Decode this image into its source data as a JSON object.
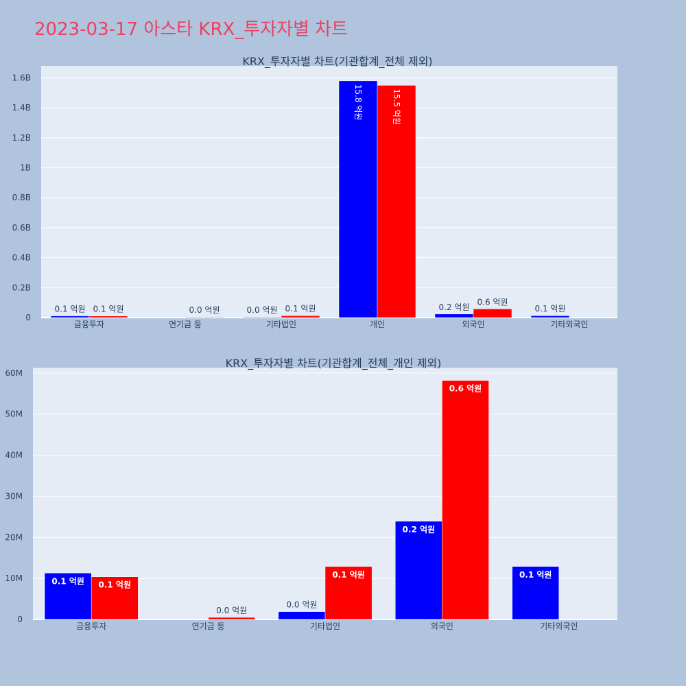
{
  "page": {
    "title": "2023-03-17 아스타 KRX_투자자별 차트",
    "title_color": "#ee4060",
    "background": "#b0c4de",
    "plot_background": "#e5ecf6"
  },
  "chart_data": [
    {
      "type": "bar",
      "title": "KRX_투자자별 차트(기관합계_전체 제외)",
      "categories": [
        "금융투자",
        "연기금 등",
        "기타법인",
        "개인",
        "외국인",
        "기타외국인"
      ],
      "ylim": [
        0,
        1680000000
      ],
      "yticks": [
        0,
        200000000,
        400000000,
        600000000,
        800000000,
        1000000000,
        1200000000,
        1400000000,
        1600000000
      ],
      "ytick_labels": [
        "0",
        "0.2B",
        "0.4B",
        "0.6B",
        "0.8B",
        "1B",
        "1.2B",
        "1.4B",
        "1.6B"
      ],
      "series": [
        {
          "name": "series-blue",
          "color": "#0000ff",
          "values": [
            11300000,
            null,
            1900000,
            1580000000,
            23900000,
            12900000
          ],
          "labels": [
            "0.1 억원",
            "",
            "0.0 억원",
            "15.8 억원",
            "0.2 억원",
            "0.1 억원"
          ]
        },
        {
          "name": "series-red",
          "color": "#ff0000",
          "values": [
            10400000,
            500000,
            12900000,
            1550000000,
            58200000,
            null
          ],
          "labels": [
            "0.1 억원",
            "0.0 억원",
            "0.1 억원",
            "15.5 억원",
            "0.6 억원",
            ""
          ]
        }
      ]
    },
    {
      "type": "bar",
      "title": "KRX_투자자별 차트(기관합계_전체_개인 제외)",
      "categories": [
        "금융투자",
        "연기금 등",
        "기타법인",
        "외국인",
        "기타외국인"
      ],
      "ylim": [
        0,
        61300000
      ],
      "yticks": [
        0,
        10000000,
        20000000,
        30000000,
        40000000,
        50000000,
        60000000
      ],
      "ytick_labels": [
        "0",
        "10M",
        "20M",
        "30M",
        "40M",
        "50M",
        "60M"
      ],
      "series": [
        {
          "name": "series-blue",
          "color": "#0000ff",
          "values": [
            11300000,
            null,
            1900000,
            23900000,
            12900000
          ],
          "labels": [
            "0.1 억원",
            "",
            "0.0 억원",
            "0.2 억원",
            "0.1 억원"
          ]
        },
        {
          "name": "series-red",
          "color": "#ff0000",
          "values": [
            10400000,
            500000,
            12900000,
            58200000,
            null
          ],
          "labels": [
            "0.1 억원",
            "0.0 억원",
            "0.1 억원",
            "0.6 억원",
            ""
          ]
        }
      ]
    }
  ]
}
